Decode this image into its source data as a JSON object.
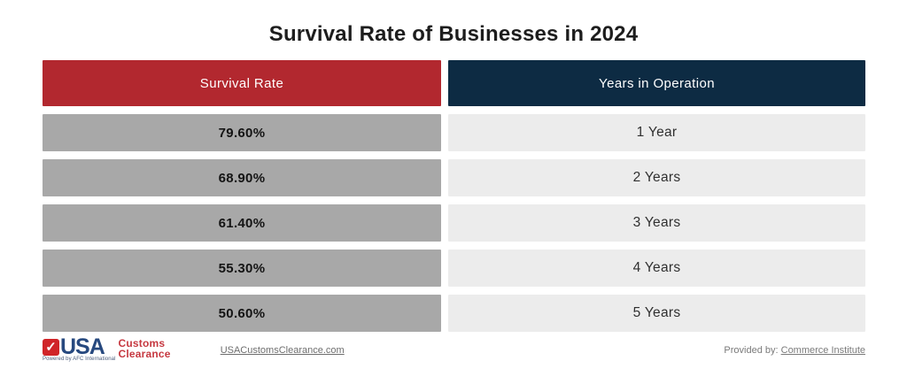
{
  "title": "Survival Rate of Businesses in 2024",
  "table": {
    "headers": {
      "rate": "Survival Rate",
      "years": "Years in Operation"
    },
    "rows": [
      {
        "rate": "79.60%",
        "years": "1 Year"
      },
      {
        "rate": "68.90%",
        "years": "2 Years"
      },
      {
        "rate": "61.40%",
        "years": "3 Years"
      },
      {
        "rate": "55.30%",
        "years": "4 Years"
      },
      {
        "rate": "50.60%",
        "years": "5 Years"
      }
    ]
  },
  "chart_data": {
    "type": "table",
    "title": "Survival Rate of Businesses in 2024",
    "columns": [
      "Survival Rate",
      "Years in Operation"
    ],
    "categories": [
      "1 Year",
      "2 Years",
      "3 Years",
      "4 Years",
      "5 Years"
    ],
    "values": [
      79.6,
      68.9,
      61.4,
      55.3,
      50.6
    ],
    "rows": [
      [
        "79.60%",
        "1 Year"
      ],
      [
        "68.90%",
        "2 Years"
      ],
      [
        "61.40%",
        "3 Years"
      ],
      [
        "55.30%",
        "4 Years"
      ],
      [
        "50.60%",
        "5 Years"
      ]
    ],
    "legend_position": "none",
    "grid": false
  },
  "footer": {
    "logo": {
      "check_icon": "✓",
      "usa": "USA",
      "customs": "Customs",
      "clearance": "Clearance",
      "powered_by": "Powered by AFC International"
    },
    "site_link": "USACustomsClearance.com",
    "provided_by_label": "Provided by: ",
    "provided_by_link": "Commerce Institute"
  },
  "colors": {
    "header_red": "#b2282f",
    "header_navy": "#0d2b43",
    "row_gray": "#a8a8a8",
    "row_light": "#ececec",
    "logo_blue": "#27497f",
    "logo_red": "#c63840",
    "logo_check_red": "#d02428"
  }
}
